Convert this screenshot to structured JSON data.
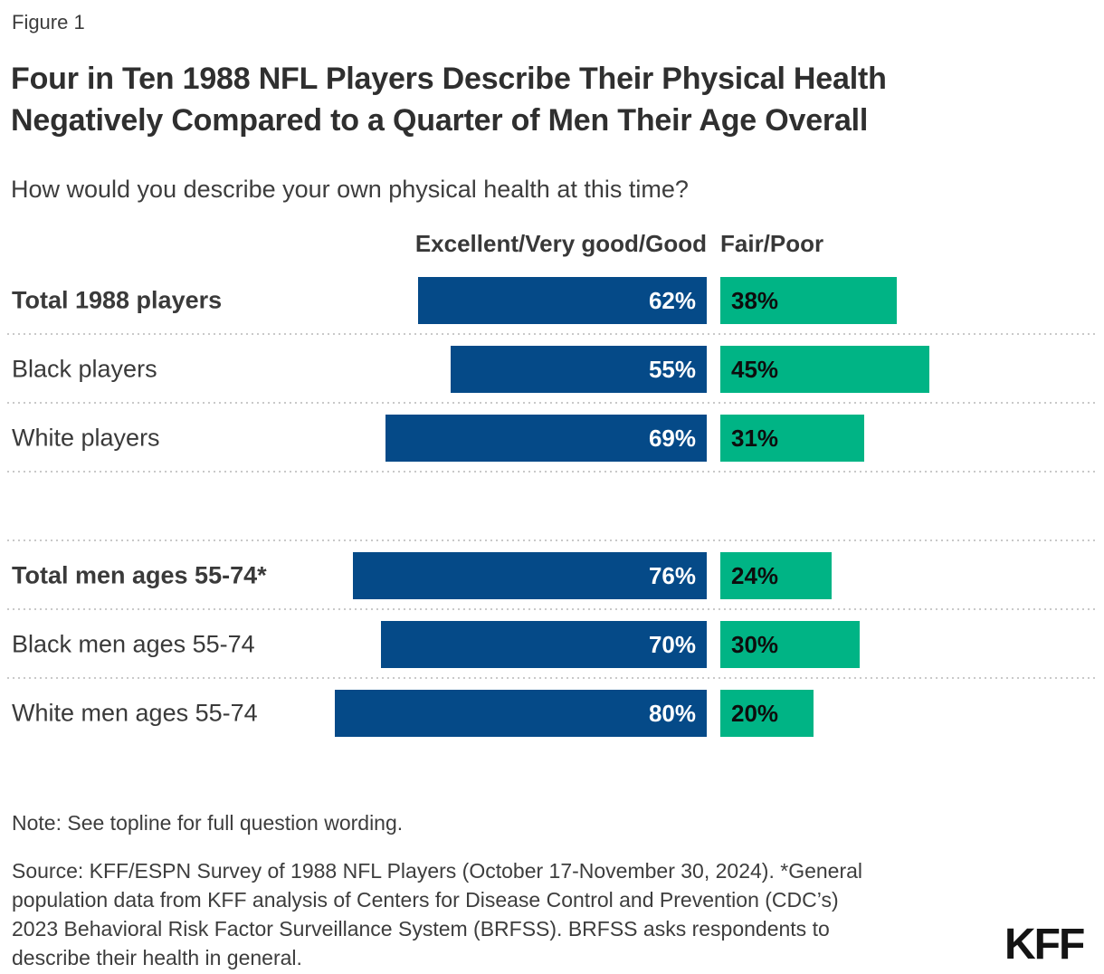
{
  "figure_label": "Figure 1",
  "title": {
    "line1": "Four in Ten 1988 NFL Players Describe Their Physical Health",
    "line2": "Negatively Compared to a Quarter of Men Their Age Overall"
  },
  "subtitle": "How would you describe your own physical health at this time?",
  "chart_data": {
    "type": "bar",
    "orientation": "horizontal",
    "unit": "%",
    "xlim": [
      0,
      100
    ],
    "legend_position": "top",
    "grid": false,
    "series": [
      {
        "name": "Excellent/Very good/Good",
        "color": "#054A88",
        "values": [
          62,
          55,
          69,
          76,
          70,
          80
        ]
      },
      {
        "name": "Fair/Poor",
        "color": "#00B485",
        "values": [
          38,
          45,
          31,
          24,
          30,
          20
        ]
      }
    ],
    "categories": [
      "Total 1988 players",
      "Black players",
      "White players",
      "Total men ages 55-74*",
      "Black men ages 55-74",
      "White men ages 55-74"
    ],
    "group_break_after_index": 2,
    "rows": [
      {
        "label": "Total 1988 players",
        "bold": true,
        "excellent": 62,
        "fair": 38,
        "display": {
          "excellent": "62%",
          "fair": "38%"
        },
        "gap_after": false
      },
      {
        "label": "Black players",
        "bold": false,
        "excellent": 55,
        "fair": 45,
        "display": {
          "excellent": "55%",
          "fair": "45%"
        },
        "gap_after": false
      },
      {
        "label": "White players",
        "bold": false,
        "excellent": 69,
        "fair": 31,
        "display": {
          "excellent": "69%",
          "fair": "31%"
        },
        "gap_after": true
      },
      {
        "label": "Total men ages 55-74*",
        "bold": true,
        "excellent": 76,
        "fair": 24,
        "display": {
          "excellent": "76%",
          "fair": "24%"
        },
        "gap_after": false
      },
      {
        "label": "Black men ages 55-74",
        "bold": false,
        "excellent": 70,
        "fair": 30,
        "display": {
          "excellent": "70%",
          "fair": "30%"
        },
        "gap_after": false
      },
      {
        "label": "White men ages 55-74",
        "bold": false,
        "excellent": 80,
        "fair": 20,
        "display": {
          "excellent": "80%",
          "fair": "20%"
        },
        "gap_after": false
      }
    ]
  },
  "note": "Note: See topline for full question wording.",
  "source_lines": [
    "Source: KFF/ESPN Survey of 1988 NFL Players (October 17-November 30, 2024). *General",
    "population data from KFF analysis of Centers for Disease Control and Prevention (CDC’s)",
    "2023 Behavioral Risk Factor Surveillance System (BRFSS). BRFSS asks respondents to",
    "describe their health in general."
  ],
  "logo": "KFF"
}
